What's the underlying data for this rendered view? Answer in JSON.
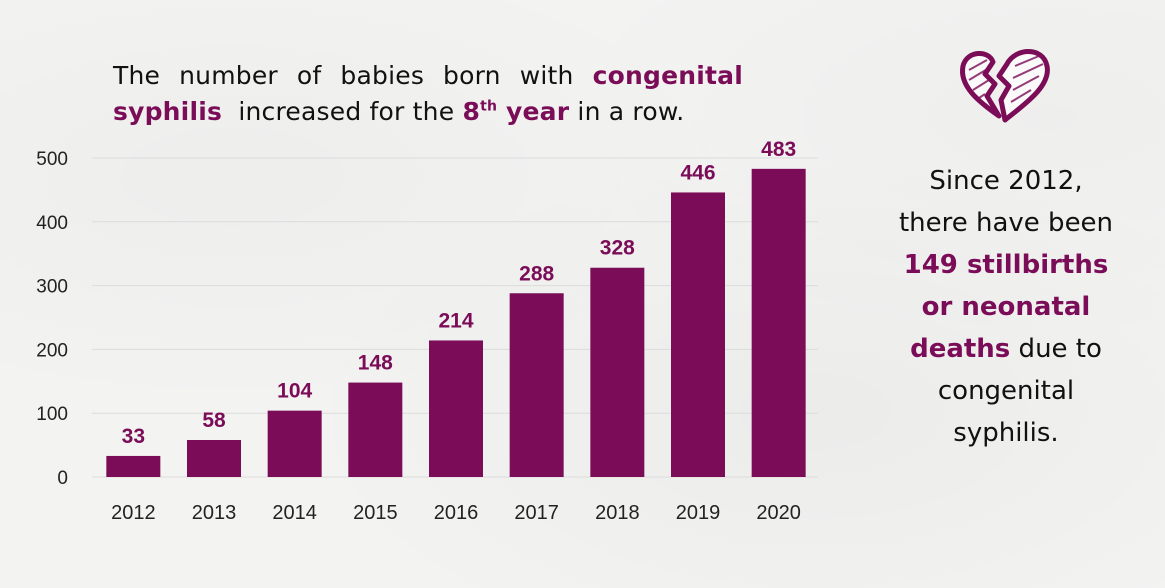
{
  "headline": {
    "part1": "The number of babies born with ",
    "highlight1": "congenital syphilis",
    "part2": "  increased for the ",
    "highlight2_num": "8",
    "highlight2_sup": "th",
    "highlight2_word": " year",
    "part3": " in a row."
  },
  "sidebar": {
    "icon": "broken-heart-icon",
    "part1": "Since 2012, there have been ",
    "highlight": "149 stillbirths or neonatal deaths",
    "part2": " due to congenital syphilis."
  },
  "colors": {
    "accent": "#7b0c57",
    "text": "#111111",
    "grid": "#dcdcdc"
  },
  "chart_data": {
    "type": "bar",
    "title": "The number of babies born with congenital syphilis increased for the 8th year in a row.",
    "xlabel": "",
    "ylabel": "",
    "categories": [
      "2012",
      "2013",
      "2014",
      "2015",
      "2016",
      "2017",
      "2018",
      "2019",
      "2020"
    ],
    "values": [
      33,
      58,
      104,
      148,
      214,
      288,
      328,
      446,
      483
    ],
    "ylim": [
      0,
      500
    ],
    "yticks": [
      0,
      100,
      200,
      300,
      400,
      500
    ],
    "grid": true,
    "legend": "none",
    "data_labels": true
  }
}
